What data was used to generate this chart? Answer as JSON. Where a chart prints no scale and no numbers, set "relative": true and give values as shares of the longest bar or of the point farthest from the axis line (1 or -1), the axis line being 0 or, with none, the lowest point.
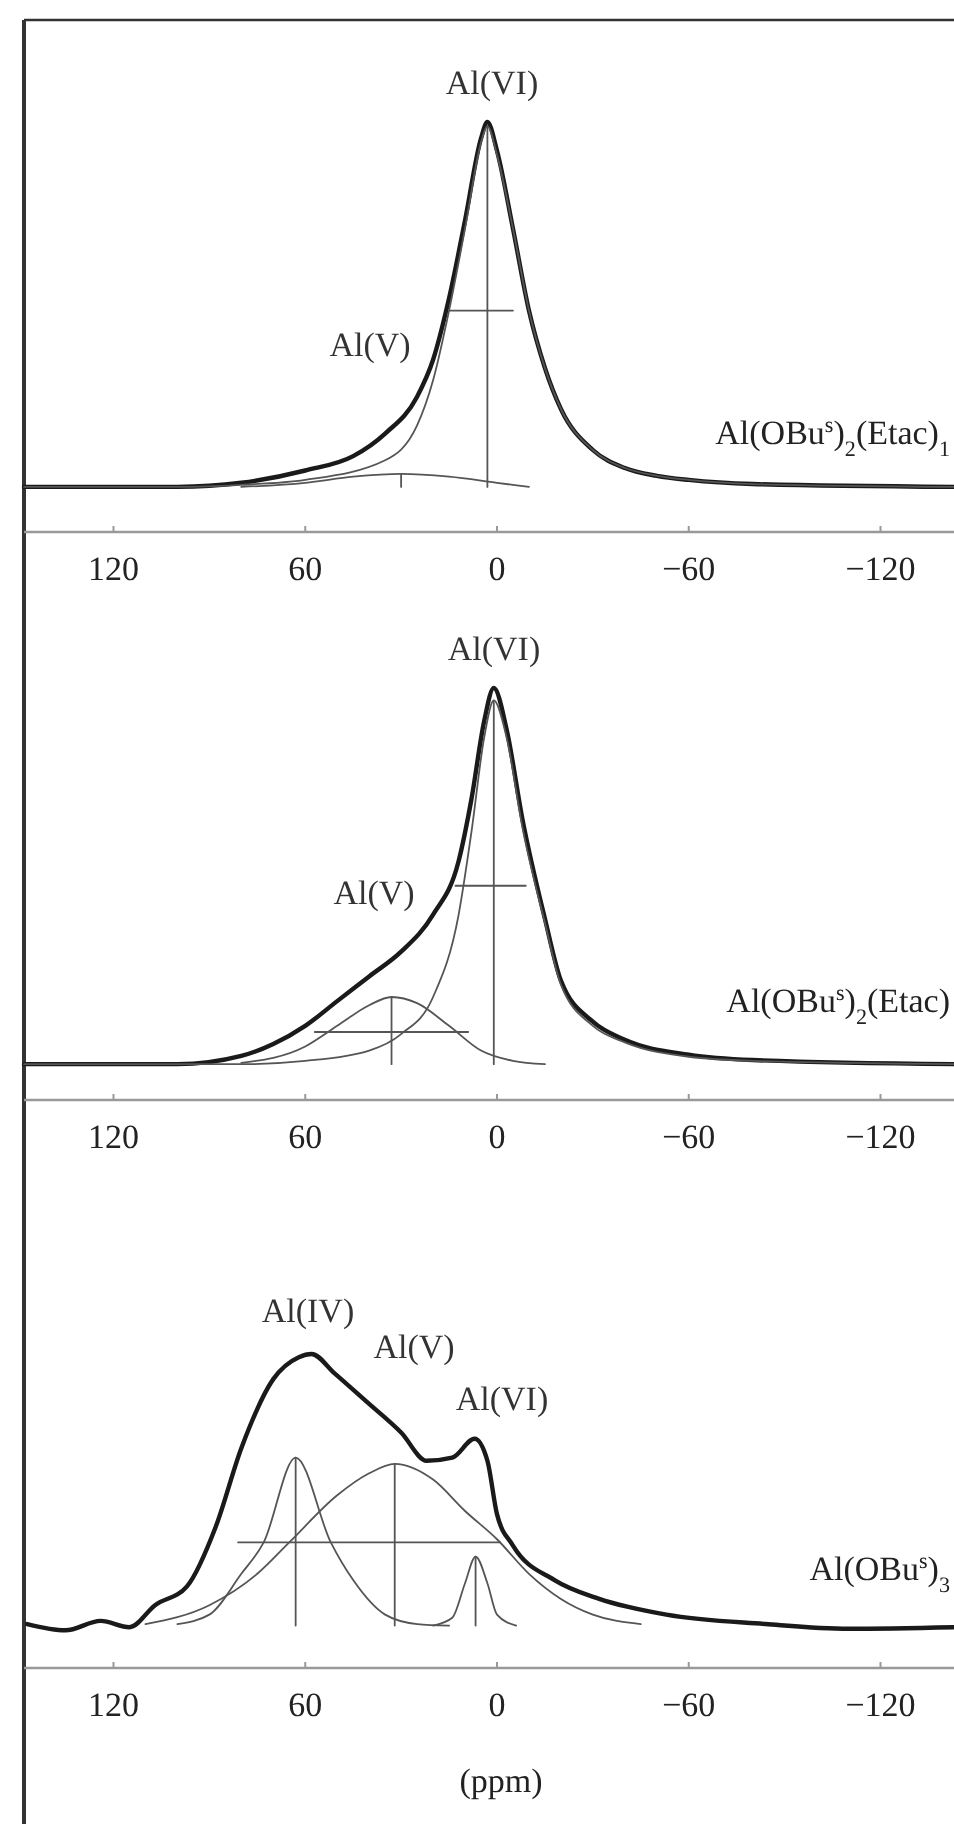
{
  "chart_data": [
    {
      "type": "line",
      "relative": true,
      "tick_labels": "x",
      "xlim": [
        148,
        -143
      ],
      "xticks": [
        120,
        60,
        0,
        -60,
        -120
      ],
      "annotations": [
        "Al(VI)",
        "Al(V)",
        "Al(OBu$^{s}$)$_{2}$(Etac)$_{1}$"
      ],
      "series": [
        {
          "color": "#1a1a1a",
          "x": [
            148,
            100,
            80,
            60,
            45,
            35,
            25,
            20,
            15,
            10,
            5,
            3,
            0,
            -5,
            -10,
            -15,
            -20,
            -30,
            -40,
            -50,
            -60,
            -80,
            -143
          ],
          "values": [
            0.11,
            0.11,
            0.12,
            0.15,
            0.185,
            0.24,
            0.33,
            0.42,
            0.57,
            0.76,
            0.96,
            1.0,
            0.93,
            0.74,
            0.54,
            0.4,
            0.3,
            0.2,
            0.156,
            0.137,
            0.127,
            0.117,
            0.11
          ]
        },
        {
          "color": "#555555",
          "x": [
            148,
            100,
            80,
            60,
            35,
            25,
            20,
            15,
            10,
            5,
            3,
            0,
            -5,
            -10,
            -15,
            -20,
            -30,
            -40,
            -50,
            -60,
            -80,
            -143
          ],
          "values": [
            0.11,
            0.11,
            0.115,
            0.127,
            0.175,
            0.26,
            0.37,
            0.54,
            0.74,
            0.95,
            0.99,
            0.92,
            0.74,
            0.54,
            0.4,
            0.3,
            0.2,
            0.156,
            0.137,
            0.127,
            0.117,
            0.11
          ]
        },
        {
          "color": "#555555",
          "x": [
            80,
            60,
            45,
            30,
            15,
            0,
            -10
          ],
          "values": [
            0.11,
            0.12,
            0.135,
            0.142,
            0.135,
            0.12,
            0.11
          ]
        },
        {
          "color": "#555555",
          "x": [
            30,
            30
          ],
          "values": [
            0.11,
            0.142
          ]
        },
        {
          "color": "#555555",
          "x": [
            3,
            3
          ],
          "values": [
            0.11,
            0.99
          ]
        },
        {
          "color": "#555555",
          "x": [
            15,
            -5
          ],
          "values": [
            0.54,
            0.54
          ]
        }
      ]
    },
    {
      "type": "line",
      "relative": true,
      "tick_labels": "x",
      "xlim": [
        148,
        -143
      ],
      "xticks": [
        120,
        60,
        0,
        -60,
        -120
      ],
      "annotations": [
        "Al(VI)",
        "Al(V)",
        "Al(OBu$^{s}$)$_{2}$(Etac)"
      ],
      "series": [
        {
          "color": "#1a1a1a",
          "x": [
            148,
            100,
            80,
            70,
            60,
            50,
            40,
            30,
            20,
            12,
            8,
            4,
            1,
            -3,
            -8,
            -15,
            -20,
            -30,
            -40,
            -60,
            -80,
            -143
          ],
          "values": [
            0.087,
            0.087,
            0.107,
            0.136,
            0.18,
            0.24,
            0.3,
            0.36,
            0.45,
            0.58,
            0.73,
            0.92,
            1.0,
            0.9,
            0.68,
            0.44,
            0.29,
            0.19,
            0.146,
            0.11,
            0.097,
            0.087
          ]
        },
        {
          "color": "#555555",
          "x": [
            148,
            80,
            60,
            40,
            30,
            20,
            12,
            8,
            4,
            1,
            -3,
            -8,
            -15,
            -20,
            -30,
            -40,
            -60,
            -80,
            -143
          ],
          "values": [
            0.087,
            0.087,
            0.095,
            0.12,
            0.16,
            0.25,
            0.45,
            0.65,
            0.88,
            0.97,
            0.88,
            0.66,
            0.43,
            0.28,
            0.18,
            0.14,
            0.105,
            0.095,
            0.087
          ]
        },
        {
          "color": "#555555",
          "x": [
            80,
            60,
            50,
            40,
            33,
            25,
            15,
            5,
            -5,
            -15
          ],
          "values": [
            0.09,
            0.13,
            0.18,
            0.23,
            0.25,
            0.235,
            0.18,
            0.12,
            0.095,
            0.087
          ]
        },
        {
          "color": "#555555",
          "x": [
            33,
            33
          ],
          "values": [
            0.087,
            0.25
          ]
        },
        {
          "color": "#555555",
          "x": [
            57,
            9
          ],
          "values": [
            0.165,
            0.165
          ]
        },
        {
          "color": "#555555",
          "x": [
            1,
            1
          ],
          "values": [
            0.087,
            0.97
          ]
        },
        {
          "color": "#555555",
          "x": [
            13,
            -9
          ],
          "values": [
            0.52,
            0.52
          ]
        }
      ]
    },
    {
      "type": "line",
      "relative": true,
      "tick_labels": "x",
      "xlabel": "(ppm)",
      "xlim": [
        148,
        -143
      ],
      "xticks": [
        120,
        60,
        0,
        -60,
        -120
      ],
      "annotations": [
        "Al(IV)",
        "Al(V)",
        "Al(VI)",
        "Al(OBu$^{s}$)$_{3}$"
      ],
      "series": [
        {
          "color": "#1a1a1a",
          "x": [
            147,
            135,
            124,
            115,
            107,
            97,
            88,
            80,
            70,
            62,
            58,
            51,
            41,
            30,
            22,
            14,
            7,
            3,
            0,
            -5,
            -18,
            -32,
            -53,
            -84,
            -110,
            -143
          ],
          "values": [
            0.14,
            0.12,
            0.15,
            0.13,
            0.2,
            0.26,
            0.45,
            0.7,
            0.92,
            0.99,
            1.0,
            0.94,
            0.85,
            0.75,
            0.66,
            0.67,
            0.73,
            0.66,
            0.49,
            0.39,
            0.28,
            0.22,
            0.17,
            0.14,
            0.125,
            0.13
          ]
        },
        {
          "color": "#555555",
          "x": [
            100,
            90,
            80,
            73,
            63,
            52,
            45,
            35,
            25,
            15
          ],
          "values": [
            0.14,
            0.17,
            0.3,
            0.4,
            0.67,
            0.4,
            0.28,
            0.17,
            0.14,
            0.135
          ]
        },
        {
          "color": "#555555",
          "x": [
            110,
            90,
            75,
            65,
            50,
            40,
            32,
            20,
            10,
            0,
            -10,
            -20,
            -30,
            -45
          ],
          "values": [
            0.14,
            0.2,
            0.3,
            0.4,
            0.55,
            0.62,
            0.65,
            0.6,
            0.5,
            0.41,
            0.3,
            0.22,
            0.17,
            0.14
          ]
        },
        {
          "color": "#555555",
          "x": [
            20,
            14,
            10,
            6.7,
            3,
            0,
            -6
          ],
          "values": [
            0.135,
            0.16,
            0.27,
            0.355,
            0.27,
            0.17,
            0.135
          ]
        },
        {
          "color": "#555555",
          "x": [
            63,
            63
          ],
          "values": [
            0.135,
            0.67
          ]
        },
        {
          "color": "#555555",
          "x": [
            32,
            32
          ],
          "values": [
            0.135,
            0.65
          ]
        },
        {
          "color": "#555555",
          "x": [
            6.7,
            6.7
          ],
          "values": [
            0.135,
            0.355
          ]
        },
        {
          "color": "#555555",
          "x": [
            81,
            -1
          ],
          "values": [
            0.4,
            0.4
          ]
        }
      ]
    }
  ]
}
